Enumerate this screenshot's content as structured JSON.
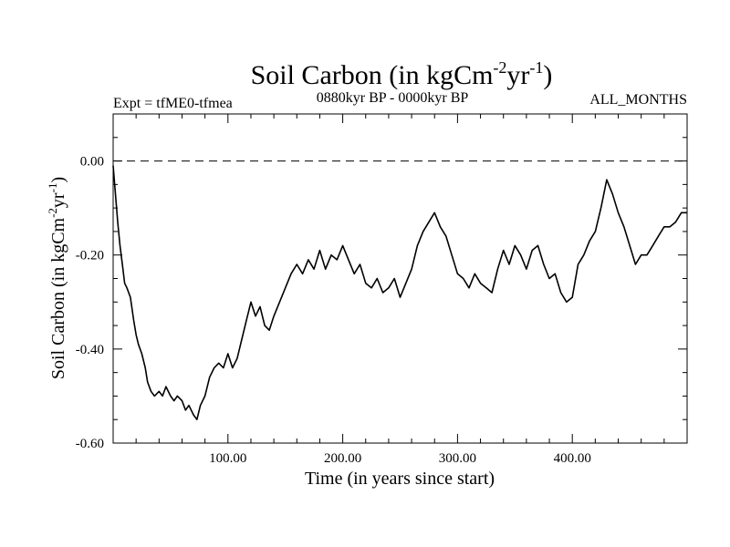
{
  "chart_data": {
    "type": "line",
    "title": {
      "main": "Soil Carbon (in kgCm",
      "sup1": "-2",
      "mid": "yr",
      "sup2": "-1",
      "end": ")"
    },
    "subtitle_left": "Expt = tfME0-tfmea",
    "subtitle_center": "0880kyr BP - 0000kyr BP",
    "subtitle_right": "ALL_MONTHS",
    "xlabel": "Time (in years since start)",
    "ylabel": {
      "main": "Soil Carbon (in kgCm",
      "sup1": "-2",
      "mid": "yr",
      "sup2": "-1",
      "end": ")"
    },
    "xlim": [
      0,
      500
    ],
    "ylim": [
      -0.6,
      0.1
    ],
    "x_ticks": [
      100,
      200,
      300,
      400
    ],
    "x_tick_labels": [
      "100.00",
      "200.00",
      "300.00",
      "400.00"
    ],
    "y_ticks": [
      0.0,
      -0.2,
      -0.4,
      -0.6
    ],
    "y_tick_labels": [
      "0.00",
      "-0.20",
      "-0.40",
      "-0.60"
    ],
    "reference_line": {
      "y": 0.0,
      "style": "dashed"
    },
    "series": [
      {
        "name": "Soil Carbon",
        "color": "#000000",
        "x": [
          0,
          2,
          4,
          6,
          8,
          10,
          12,
          15,
          18,
          20,
          22,
          25,
          28,
          30,
          33,
          36,
          40,
          43,
          46,
          50,
          53,
          56,
          60,
          63,
          66,
          70,
          73,
          76,
          80,
          84,
          88,
          92,
          96,
          100,
          104,
          108,
          112,
          116,
          120,
          124,
          128,
          132,
          136,
          140,
          145,
          150,
          155,
          160,
          165,
          170,
          175,
          180,
          185,
          190,
          195,
          200,
          205,
          210,
          215,
          220,
          225,
          230,
          235,
          240,
          245,
          250,
          255,
          260,
          265,
          270,
          275,
          280,
          285,
          290,
          295,
          300,
          305,
          310,
          315,
          320,
          325,
          330,
          335,
          340,
          345,
          350,
          355,
          360,
          365,
          370,
          375,
          380,
          385,
          390,
          395,
          400,
          405,
          410,
          415,
          420,
          425,
          430,
          435,
          440,
          445,
          450,
          455,
          460,
          465,
          470,
          475,
          480,
          485,
          490,
          495,
          500
        ],
        "y": [
          -0.01,
          -0.07,
          -0.13,
          -0.18,
          -0.22,
          -0.26,
          -0.27,
          -0.29,
          -0.34,
          -0.37,
          -0.39,
          -0.41,
          -0.44,
          -0.47,
          -0.49,
          -0.5,
          -0.49,
          -0.5,
          -0.48,
          -0.5,
          -0.51,
          -0.5,
          -0.51,
          -0.53,
          -0.52,
          -0.54,
          -0.55,
          -0.52,
          -0.5,
          -0.46,
          -0.44,
          -0.43,
          -0.44,
          -0.41,
          -0.44,
          -0.42,
          -0.38,
          -0.34,
          -0.3,
          -0.33,
          -0.31,
          -0.35,
          -0.36,
          -0.33,
          -0.3,
          -0.27,
          -0.24,
          -0.22,
          -0.24,
          -0.21,
          -0.23,
          -0.19,
          -0.23,
          -0.2,
          -0.21,
          -0.18,
          -0.21,
          -0.24,
          -0.22,
          -0.26,
          -0.27,
          -0.25,
          -0.28,
          -0.27,
          -0.25,
          -0.29,
          -0.26,
          -0.23,
          -0.18,
          -0.15,
          -0.13,
          -0.11,
          -0.14,
          -0.16,
          -0.2,
          -0.24,
          -0.25,
          -0.27,
          -0.24,
          -0.26,
          -0.27,
          -0.28,
          -0.23,
          -0.19,
          -0.22,
          -0.18,
          -0.2,
          -0.23,
          -0.19,
          -0.18,
          -0.22,
          -0.25,
          -0.24,
          -0.28,
          -0.3,
          -0.29,
          -0.22,
          -0.2,
          -0.17,
          -0.15,
          -0.1,
          -0.04,
          -0.07,
          -0.11,
          -0.14,
          -0.18,
          -0.22,
          -0.2,
          -0.2,
          -0.18,
          -0.16,
          -0.14,
          -0.14,
          -0.13,
          -0.11,
          -0.11
        ]
      }
    ]
  }
}
